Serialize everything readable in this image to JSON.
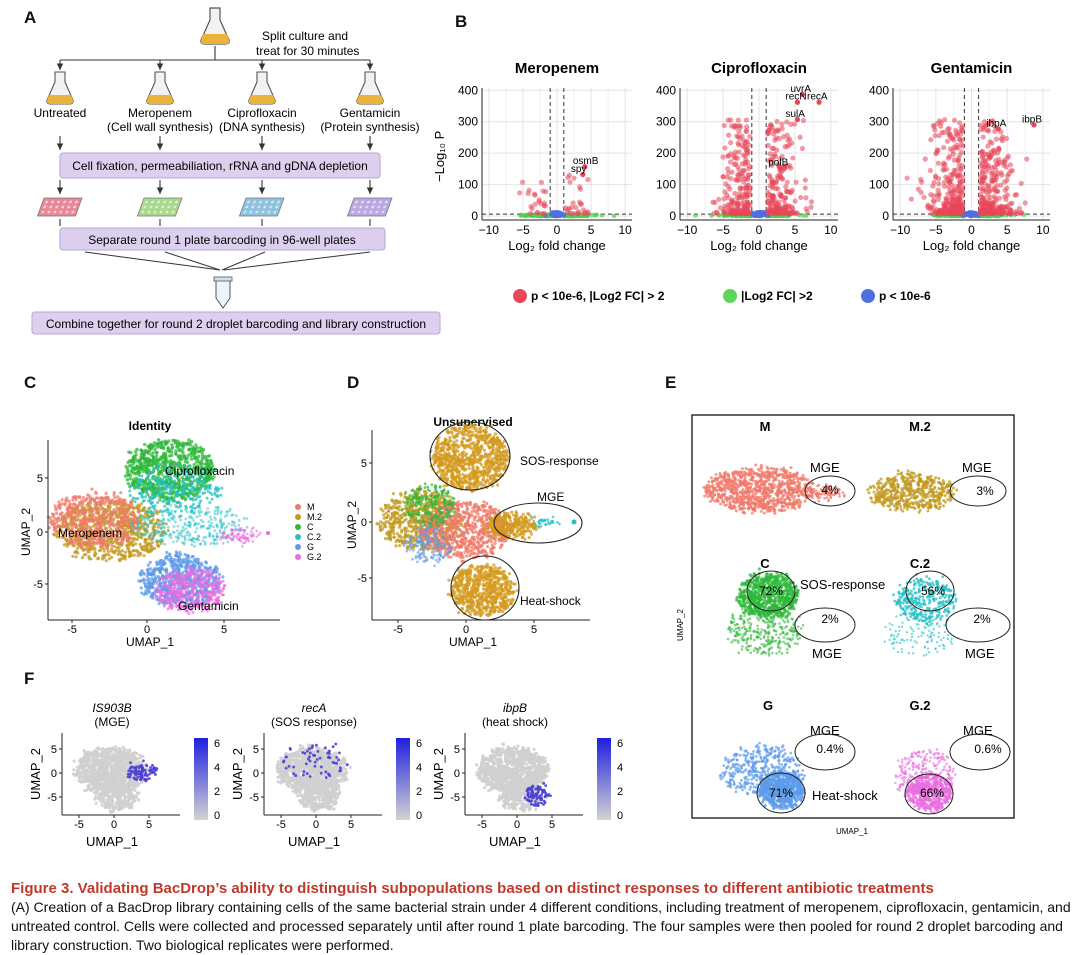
{
  "panels": {
    "a": "A",
    "b": "B",
    "c": "C",
    "d": "D",
    "e": "E",
    "f": "F"
  },
  "panel_a": {
    "split_note_1": "Split culture and",
    "split_note_2": "treat for 30 minutes",
    "flasks": [
      {
        "name": "Untreated",
        "sub": ""
      },
      {
        "name": "Meropenem",
        "sub": "(Cell wall synthesis)"
      },
      {
        "name": "Ciprofloxacin",
        "sub": "(DNA synthesis)"
      },
      {
        "name": "Gentamicin",
        "sub": "(Protein synthesis)"
      }
    ],
    "box1": "Cell fixation, permeabiliation, rRNA and gDNA depletion",
    "box2": "Separate round 1 plate barcoding in 96-well plates",
    "box3": "Combine together for round 2 droplet barcoding and library construction",
    "plate_colors": [
      "#e8899a",
      "#a9d88f",
      "#8fc2dd",
      "#b8a9e3"
    ]
  },
  "panel_b": {
    "ylabel": "−Log₁₀ P",
    "xlabel": "Log₂ fold change",
    "yticks": [
      "400",
      "300",
      "200",
      "100",
      "0"
    ],
    "xticks": [
      "−10",
      "−5",
      "0",
      "5",
      "10"
    ],
    "plots": [
      {
        "title": "Meropenem",
        "genes": [
          "osmB",
          "spy"
        ]
      },
      {
        "title": "Ciprofloxacin",
        "genes": [
          "uvrA",
          "recN",
          "recA",
          "sulA",
          "polB"
        ]
      },
      {
        "title": "Gentamicin",
        "genes": [
          "ibpA",
          "ibpB"
        ]
      }
    ],
    "legend": [
      {
        "label": "p < 10e-6, |Log2 FC| > 2",
        "color": "#e8475a"
      },
      {
        "label": "|Log2 FC| >2",
        "color": "#5bd65b"
      },
      {
        "label": "p < 10e-6",
        "color": "#4f6fe0"
      }
    ]
  },
  "panel_c": {
    "title": "Identity",
    "xlabel": "UMAP_1",
    "ylabel": "UMAP_2",
    "xticks": [
      "-5",
      "0",
      "5"
    ],
    "yticks": [
      "5",
      "0",
      "-5"
    ],
    "labels": [
      "Ciprofloxacin",
      "Meropenem",
      "Gentamicin"
    ],
    "legend": [
      {
        "label": "M",
        "color": "#f07a6a"
      },
      {
        "label": "M.2",
        "color": "#c29a1f"
      },
      {
        "label": "C",
        "color": "#2eb83a"
      },
      {
        "label": "C.2",
        "color": "#22c1c6"
      },
      {
        "label": "G",
        "color": "#5c9bea"
      },
      {
        "label": "G.2",
        "color": "#ea6ce0"
      }
    ]
  },
  "panel_d": {
    "title": "Unsupervised",
    "xlabel": "UMAP_1",
    "ylabel": "UMAP_2",
    "xticks": [
      "-5",
      "0",
      "5"
    ],
    "yticks": [
      "5",
      "0",
      "-5"
    ],
    "labels": [
      "SOS-response",
      "MGE",
      "Heat-shock"
    ]
  },
  "panel_e": {
    "ylabel": "UMAP_2",
    "xlabel": "UMAP_1",
    "cells": [
      {
        "name": "M",
        "pct": "4%",
        "annot": "MGE"
      },
      {
        "name": "M.2",
        "pct": "3%",
        "annot": "MGE"
      },
      {
        "name": "C",
        "pct": "72%",
        "pct2": "2%",
        "annot": "SOS-response",
        "annot2": "MGE"
      },
      {
        "name": "C.2",
        "pct": "56%",
        "pct2": "2%",
        "annot2": "MGE"
      },
      {
        "name": "G",
        "pct": "71%",
        "pct2": "0.4%",
        "annot": "Heat-shock",
        "annot2": "MGE"
      },
      {
        "name": "G.2",
        "pct": "66%",
        "pct2": "0.6%",
        "annot2": "MGE"
      }
    ]
  },
  "panel_f": {
    "xlabel": "UMAP_1",
    "ylabel": "UMAP_2",
    "xticks": [
      "-5",
      "0",
      "5"
    ],
    "yticks": [
      "5",
      "0",
      "-5"
    ],
    "plots": [
      {
        "gene": "IS903B",
        "sub": "(MGE)",
        "scale": [
          "6",
          "4",
          "2",
          "0"
        ]
      },
      {
        "gene": "recA",
        "sub": "(SOS response)",
        "scale": [
          "6",
          "4",
          "2",
          "0"
        ]
      },
      {
        "gene": "ibpB",
        "sub": "(heat shock)",
        "scale": [
          "6",
          "4",
          "2",
          "0"
        ]
      }
    ]
  },
  "caption": {
    "title": "Figure 3. Validating BacDrop’s ability to distinguish subpopulations based on distinct responses to different antibiotic treatments",
    "body": "(A) Creation of a BacDrop library containing cells of the same bacterial strain under 4 different conditions, including treatment of meropenem, ciprofloxacin, gentamicin, and untreated control. Cells were collected and processed separately until after round 1 plate barcoding. The four samples were then pooled for round 2 droplet barcoding and library construction. Two biological replicates were performed."
  }
}
